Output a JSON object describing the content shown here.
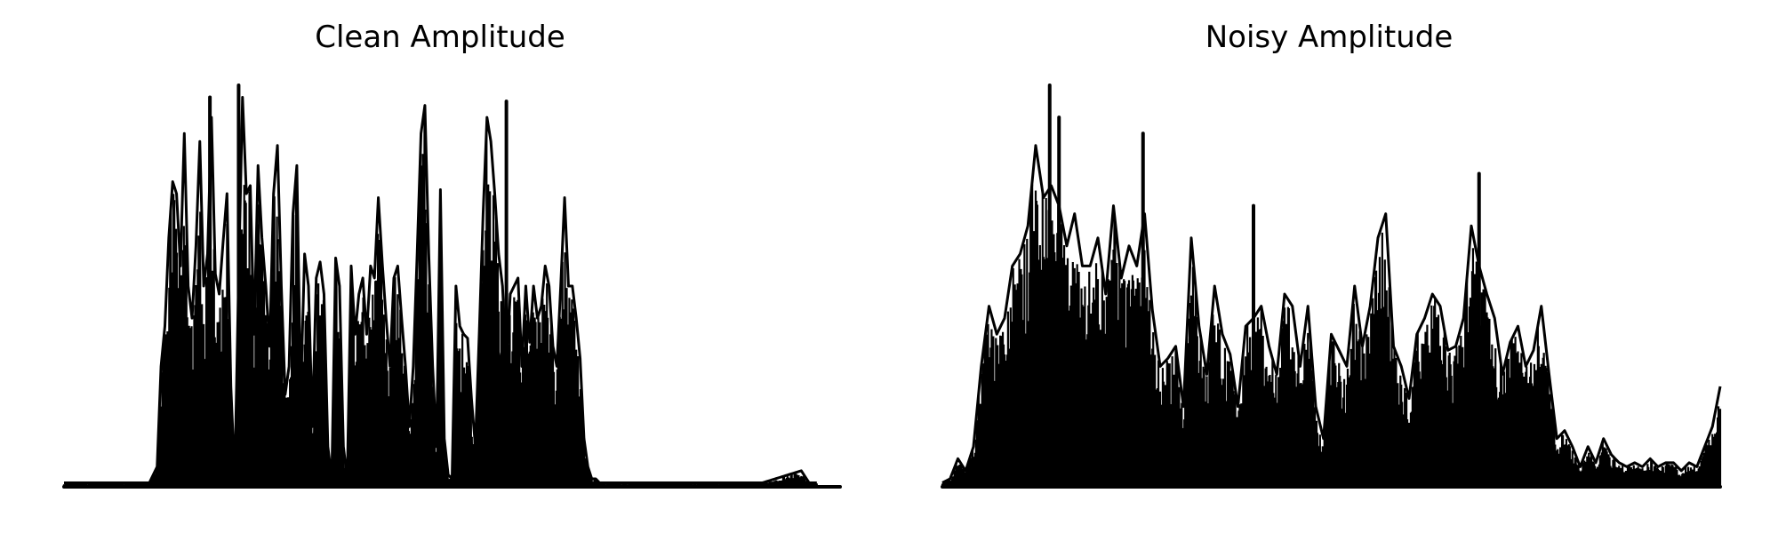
{
  "chart_data": [
    {
      "type": "area",
      "title": "Clean Amplitude",
      "xlabel": "",
      "ylabel": "",
      "axes_visible": false,
      "grid": false,
      "legend": "none",
      "ylim": [
        0,
        1.0
      ],
      "color": "#000000",
      "envelope_x": [
        0,
        0.1,
        0.11,
        0.12,
        0.125,
        0.13,
        0.135,
        0.14,
        0.145,
        0.15,
        0.155,
        0.16,
        0.165,
        0.17,
        0.175,
        0.18,
        0.185,
        0.19,
        0.195,
        0.2,
        0.205,
        0.21,
        0.215,
        0.22,
        0.225,
        0.23,
        0.235,
        0.24,
        0.245,
        0.25,
        0.255,
        0.26,
        0.265,
        0.27,
        0.275,
        0.28,
        0.285,
        0.29,
        0.295,
        0.3,
        0.305,
        0.31,
        0.315,
        0.32,
        0.325,
        0.33,
        0.335,
        0.34,
        0.345,
        0.35,
        0.355,
        0.36,
        0.365,
        0.37,
        0.375,
        0.38,
        0.385,
        0.39,
        0.395,
        0.4,
        0.405,
        0.41,
        0.415,
        0.42,
        0.425,
        0.43,
        0.435,
        0.44,
        0.445,
        0.45,
        0.455,
        0.46,
        0.465,
        0.47,
        0.475,
        0.48,
        0.485,
        0.49,
        0.495,
        0.5,
        0.505,
        0.51,
        0.515,
        0.52,
        0.525,
        0.53,
        0.535,
        0.54,
        0.545,
        0.55,
        0.555,
        0.56,
        0.565,
        0.57,
        0.575,
        0.58,
        0.585,
        0.59,
        0.595,
        0.6,
        0.605,
        0.61,
        0.615,
        0.62,
        0.625,
        0.63,
        0.635,
        0.64,
        0.645,
        0.65,
        0.655,
        0.66,
        0.665,
        0.67,
        0.675,
        0.68,
        0.685,
        0.69,
        0.695,
        0.7,
        0.705,
        0.71,
        0.715,
        0.72,
        0.725,
        0.73,
        0.735,
        0.74,
        0.745,
        0.75,
        0.755,
        0.76,
        0.765,
        0.77,
        0.775,
        0.78,
        0.785,
        0.79,
        0.795,
        0.8,
        0.805,
        0.81,
        0.815,
        0.82,
        0.825,
        0.83,
        0.835,
        0.84,
        0.845,
        0.85,
        0.855,
        0.86,
        0.865,
        0.87,
        0.875,
        0.88,
        0.9,
        0.95,
        0.96,
        0.965,
        0.97,
        1.0
      ],
      "envelope_y": [
        0.01,
        0.01,
        0.01,
        0.05,
        0.3,
        0.4,
        0.62,
        0.76,
        0.73,
        0.55,
        0.88,
        0.5,
        0.42,
        0.6,
        0.86,
        0.5,
        0.58,
        0.92,
        0.53,
        0.48,
        0.61,
        0.73,
        0.25,
        0.02,
        0.52,
        0.97,
        0.73,
        0.75,
        0.38,
        0.8,
        0.62,
        0.5,
        0.35,
        0.73,
        0.85,
        0.5,
        0.23,
        0.3,
        0.68,
        0.8,
        0.23,
        0.58,
        0.5,
        0.15,
        0.52,
        0.56,
        0.48,
        0.1,
        0.02,
        0.57,
        0.5,
        0.1,
        0.02,
        0.55,
        0.38,
        0.48,
        0.52,
        0.38,
        0.55,
        0.52,
        0.72,
        0.56,
        0.42,
        0.3,
        0.52,
        0.55,
        0.42,
        0.3,
        0.15,
        0.3,
        0.58,
        0.88,
        0.95,
        0.58,
        0.3,
        0.1,
        0.74,
        0.12,
        0.03,
        0.02,
        0.5,
        0.4,
        0.38,
        0.37,
        0.22,
        0.1,
        0.38,
        0.68,
        0.92,
        0.86,
        0.73,
        0.58,
        0.5,
        0.3,
        0.48,
        0.5,
        0.52,
        0.3,
        0.5,
        0.36,
        0.5,
        0.42,
        0.45,
        0.55,
        0.5,
        0.35,
        0.3,
        0.5,
        0.72,
        0.5,
        0.5,
        0.42,
        0.32,
        0.12,
        0.05,
        0.02,
        0.02,
        0.01,
        0.01,
        0.01,
        0.01,
        0.01,
        0.01,
        0.01,
        0.01,
        0.01,
        0.01,
        0.01,
        0.01,
        0.01,
        0.01,
        0.01,
        0.01,
        0.01,
        0.01,
        0.01,
        0.01,
        0.01,
        0.01,
        0.01,
        0.01,
        0.01,
        0.01,
        0.01,
        0.01,
        0.01,
        0.01,
        0.01,
        0.01,
        0.01,
        0.01,
        0.01,
        0.01,
        0.01,
        0.01,
        0.01,
        0.01,
        0.04,
        0.01,
        0.01,
        0.01
      ],
      "spikes_x": [
        0.225,
        0.188,
        0.57
      ],
      "spikes_y": [
        1.0,
        0.97,
        0.96
      ]
    },
    {
      "type": "area",
      "title": "Noisy Amplitude",
      "xlabel": "",
      "ylabel": "",
      "axes_visible": false,
      "grid": false,
      "legend": "none",
      "ylim": [
        0,
        1.0
      ],
      "color": "#000000",
      "envelope_x": [
        0,
        0.01,
        0.02,
        0.03,
        0.04,
        0.05,
        0.06,
        0.07,
        0.08,
        0.09,
        0.1,
        0.11,
        0.12,
        0.13,
        0.14,
        0.15,
        0.16,
        0.17,
        0.18,
        0.19,
        0.2,
        0.21,
        0.22,
        0.23,
        0.24,
        0.25,
        0.26,
        0.27,
        0.28,
        0.29,
        0.3,
        0.31,
        0.32,
        0.33,
        0.34,
        0.35,
        0.36,
        0.37,
        0.38,
        0.39,
        0.4,
        0.41,
        0.42,
        0.43,
        0.44,
        0.45,
        0.46,
        0.47,
        0.48,
        0.49,
        0.5,
        0.51,
        0.52,
        0.53,
        0.54,
        0.55,
        0.56,
        0.57,
        0.58,
        0.59,
        0.6,
        0.61,
        0.62,
        0.63,
        0.64,
        0.65,
        0.66,
        0.67,
        0.68,
        0.69,
        0.7,
        0.71,
        0.72,
        0.73,
        0.74,
        0.75,
        0.76,
        0.77,
        0.78,
        0.79,
        0.8,
        0.81,
        0.82,
        0.83,
        0.84,
        0.85,
        0.86,
        0.87,
        0.88,
        0.89,
        0.9,
        0.91,
        0.92,
        0.93,
        0.94,
        0.95,
        0.96,
        0.97,
        0.98,
        0.99,
        1.0
      ],
      "envelope_y": [
        0.01,
        0.02,
        0.07,
        0.04,
        0.1,
        0.3,
        0.45,
        0.38,
        0.42,
        0.55,
        0.58,
        0.65,
        0.85,
        0.72,
        0.75,
        0.7,
        0.6,
        0.68,
        0.55,
        0.55,
        0.62,
        0.48,
        0.7,
        0.52,
        0.6,
        0.55,
        0.68,
        0.44,
        0.3,
        0.32,
        0.35,
        0.2,
        0.62,
        0.4,
        0.28,
        0.5,
        0.38,
        0.33,
        0.2,
        0.4,
        0.42,
        0.45,
        0.35,
        0.28,
        0.48,
        0.45,
        0.3,
        0.45,
        0.2,
        0.12,
        0.38,
        0.34,
        0.3,
        0.5,
        0.35,
        0.45,
        0.62,
        0.68,
        0.35,
        0.3,
        0.22,
        0.38,
        0.42,
        0.48,
        0.45,
        0.34,
        0.35,
        0.42,
        0.65,
        0.55,
        0.48,
        0.42,
        0.28,
        0.36,
        0.4,
        0.3,
        0.34,
        0.45,
        0.28,
        0.12,
        0.14,
        0.1,
        0.05,
        0.1,
        0.06,
        0.12,
        0.08,
        0.06,
        0.05,
        0.06,
        0.05,
        0.07,
        0.05,
        0.06,
        0.06,
        0.04,
        0.06,
        0.05,
        0.1,
        0.15,
        0.25
      ],
      "spikes_x": [
        0.138,
        0.15,
        0.258,
        0.4,
        0.69
      ],
      "spikes_y": [
        1.0,
        0.92,
        0.88,
        0.7,
        0.78
      ]
    }
  ]
}
